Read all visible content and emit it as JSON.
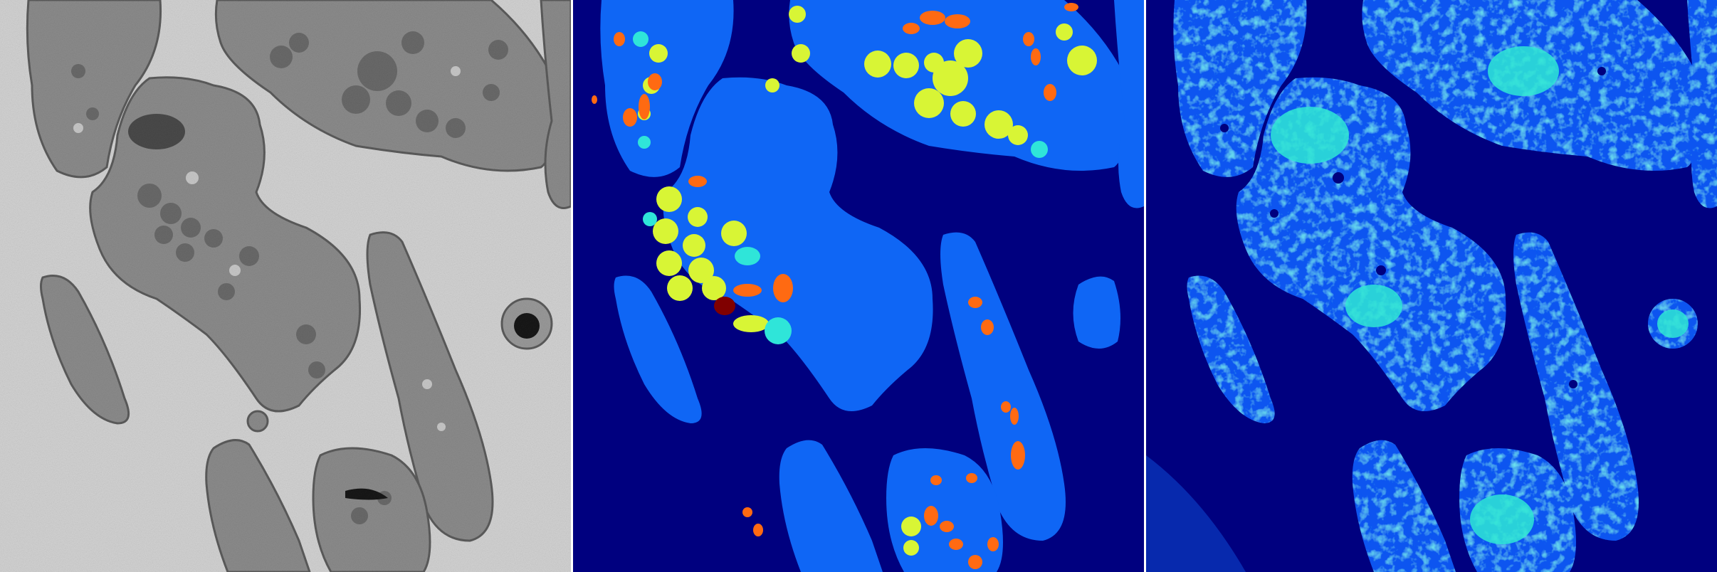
{
  "figure": {
    "panels": [
      {
        "id": "em",
        "kind": "electron-micrograph"
      },
      {
        "id": "segmentation",
        "kind": "label-mask"
      },
      {
        "id": "heatmap",
        "kind": "intensity-map"
      }
    ]
  },
  "colors": {
    "background_gray": "#d3d3d3",
    "cell_gray": "#8c8c8c",
    "organelle_gray": "#6a6a6a",
    "mask_background": "#00007f",
    "mask_cell": "#0f66f5",
    "mask_yellow": "#d8f535",
    "mask_orange": "#ff6a12",
    "mask_cyan": "#2fe5d9",
    "mask_darkred": "#800000",
    "heat_low": "#00007f",
    "heat_mid": "#0f55f0",
    "heat_high": "#2fe8d5"
  }
}
